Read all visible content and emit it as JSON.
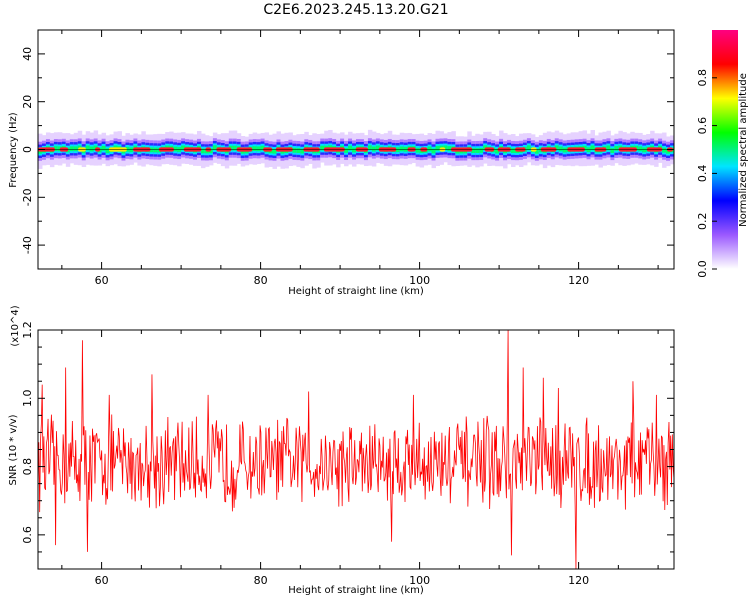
{
  "title": "C2E6.2023.245.13.20.G21",
  "chart_data": [
    {
      "type": "heatmap",
      "name": "spectrogram",
      "xlabel": "Height of straight line (km)",
      "ylabel": "Frequency (Hz)",
      "xlim": [
        52,
        132
      ],
      "ylim": [
        -50,
        50
      ],
      "xticks": [
        60,
        80,
        100,
        120
      ],
      "yticks": [
        -40,
        -20,
        0,
        20,
        40
      ],
      "band_center_hz": 0,
      "band_halfwidth_hz": 4,
      "colorbar": {
        "label": "Normalized spectral amplitude",
        "range": [
          0.0,
          1.0
        ],
        "ticks": [
          0.0,
          0.2,
          0.4,
          0.6,
          0.8
        ],
        "tick_labels": [
          "0.0",
          "0.2",
          "0.4",
          "0.6",
          "0.8"
        ],
        "colors": [
          "#ffffff",
          "#9b59ff",
          "#0000ff",
          "#00e5ff",
          "#00ff00",
          "#ffff00",
          "#ff0000",
          "#ff0080"
        ]
      }
    },
    {
      "type": "line",
      "name": "snr",
      "xlabel": "Height of straight line (km)",
      "ylabel": "SNR (10 * v/v)",
      "y_multiplier_label": "(x10^4)",
      "xlim": [
        52,
        132
      ],
      "ylim": [
        0.5,
        1.2
      ],
      "xticks": [
        60,
        80,
        100,
        120
      ],
      "yticks": [
        0.6,
        0.8,
        1.0,
        1.2
      ],
      "ytick_labels": [
        "0.6",
        "0.8",
        "1.0",
        "1.2"
      ],
      "line_color": "#ff0000",
      "mean": 0.81,
      "spikes": [
        {
          "x": 52.5,
          "y": 1.04
        },
        {
          "x": 54.2,
          "y": 0.57
        },
        {
          "x": 55.5,
          "y": 1.09
        },
        {
          "x": 57.6,
          "y": 1.17
        },
        {
          "x": 58.2,
          "y": 0.55
        },
        {
          "x": 61.0,
          "y": 1.01
        },
        {
          "x": 66.3,
          "y": 1.07
        },
        {
          "x": 73.4,
          "y": 1.01
        },
        {
          "x": 86.0,
          "y": 1.02
        },
        {
          "x": 96.5,
          "y": 0.58
        },
        {
          "x": 99.2,
          "y": 1.01
        },
        {
          "x": 111.1,
          "y": 1.2
        },
        {
          "x": 111.6,
          "y": 0.54
        },
        {
          "x": 113.0,
          "y": 1.09
        },
        {
          "x": 115.6,
          "y": 1.06
        },
        {
          "x": 117.5,
          "y": 1.03
        },
        {
          "x": 119.7,
          "y": 0.5
        },
        {
          "x": 126.8,
          "y": 1.05
        },
        {
          "x": 129.8,
          "y": 1.01
        }
      ]
    }
  ]
}
